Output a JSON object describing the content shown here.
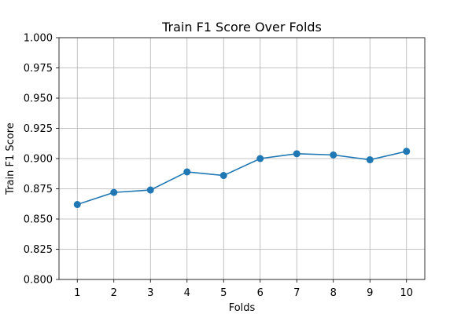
{
  "chart_data": {
    "type": "line",
    "title": "Train F1 Score Over Folds",
    "xlabel": "Folds",
    "ylabel": "Train F1 Score",
    "x": [
      1,
      2,
      3,
      4,
      5,
      6,
      7,
      8,
      9,
      10
    ],
    "series": [
      {
        "values": [
          0.862,
          0.872,
          0.874,
          0.889,
          0.886,
          0.9,
          0.904,
          0.903,
          0.899,
          0.906
        ]
      }
    ],
    "xlim": [
      0.5,
      10.5
    ],
    "ylim": [
      0.8,
      1.0
    ],
    "x_ticks": [
      "1",
      "2",
      "3",
      "4",
      "5",
      "6",
      "7",
      "8",
      "9",
      "10"
    ],
    "y_ticks": [
      "0.800",
      "0.825",
      "0.850",
      "0.875",
      "0.900",
      "0.925",
      "0.950",
      "0.975",
      "1.000"
    ],
    "grid": true,
    "line_color": "#1f77b4",
    "marker": "circle"
  }
}
